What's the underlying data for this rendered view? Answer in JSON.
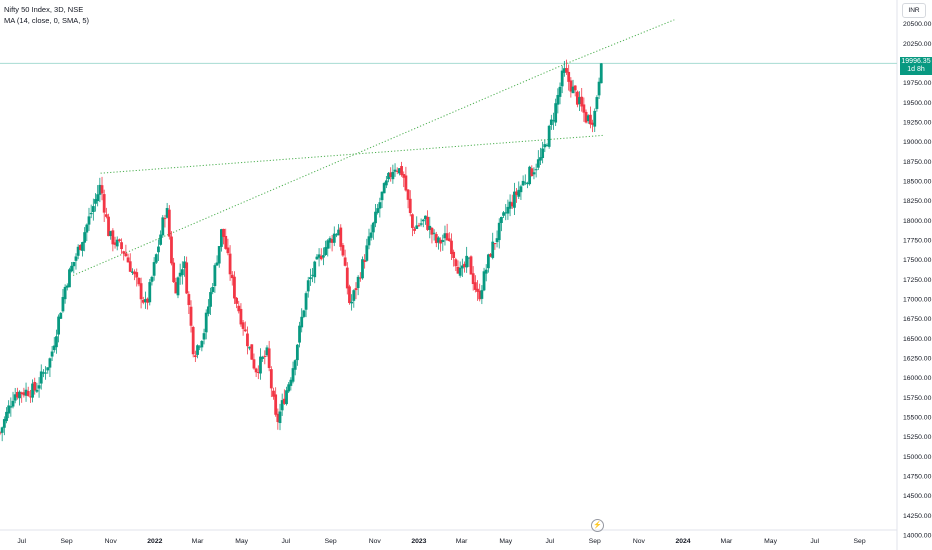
{
  "header": {
    "title": "Nifty 50 Index, 3D, NSE",
    "indicator": "MA (14, close, 0, SMA, 5)",
    "currency": "INR"
  },
  "last_price": {
    "value": "19996.35",
    "countdown": "1d 8h"
  },
  "colors": {
    "up": "#089981",
    "down": "#f23645",
    "trendline": "#4caf50",
    "price_line": "#a7dcd2"
  },
  "chart_data": {
    "type": "candlestick",
    "title": "Nifty 50 Index, 3D, NSE",
    "ylim": [
      14000,
      20700
    ],
    "y_ticks": [
      14000,
      14250,
      14500,
      14750,
      15000,
      15250,
      15500,
      15750,
      16000,
      16250,
      16500,
      16750,
      17000,
      17250,
      17500,
      17750,
      18000,
      18250,
      18500,
      18750,
      19000,
      19250,
      19500,
      19750,
      20000,
      20250,
      20500
    ],
    "y_tick_labels": [
      "14000.00",
      "14250.00",
      "14500.00",
      "14750.00",
      "15000.00",
      "15250.00",
      "15500.00",
      "15750.00",
      "16000.00",
      "16250.00",
      "16500.00",
      "16750.00",
      "17000.00",
      "17250.00",
      "17500.00",
      "17750.00",
      "18000.00",
      "18250.00",
      "18500.00",
      "18750.00",
      "19000.00",
      "19250.00",
      "19500.00",
      "19750.00",
      "20000.00",
      "20250.00",
      "20500.00"
    ],
    "x_ticks": [
      "Jul",
      "Sep",
      "Nov",
      "2022",
      "Mar",
      "May",
      "Jul",
      "Sep",
      "Nov",
      "2023",
      "Mar",
      "May",
      "Jul",
      "Sep",
      "Nov",
      "2024",
      "Mar",
      "May",
      "Jul",
      "Sep"
    ],
    "x_start": "2021-06-01",
    "x_end": "2024-10-20",
    "anchors": [
      [
        "2021-06-01",
        15300
      ],
      [
        "2021-06-20",
        15800
      ],
      [
        "2021-07-20",
        15850
      ],
      [
        "2021-08-10",
        16250
      ],
      [
        "2021-08-31",
        17200
      ],
      [
        "2021-09-20",
        17700
      ],
      [
        "2021-10-18",
        18450
      ],
      [
        "2021-10-30",
        17800
      ],
      [
        "2021-11-20",
        17600
      ],
      [
        "2021-12-20",
        16900
      ],
      [
        "2022-01-17",
        18200
      ],
      [
        "2022-01-28",
        17100
      ],
      [
        "2022-02-10",
        17500
      ],
      [
        "2022-02-24",
        16300
      ],
      [
        "2022-03-10",
        16600
      ],
      [
        "2022-04-04",
        17900
      ],
      [
        "2022-04-20",
        17100
      ],
      [
        "2022-05-20",
        16100
      ],
      [
        "2022-06-05",
        16300
      ],
      [
        "2022-06-18",
        15400
      ],
      [
        "2022-07-10",
        16100
      ],
      [
        "2022-08-01",
        17200
      ],
      [
        "2022-08-20",
        17600
      ],
      [
        "2022-09-12",
        17900
      ],
      [
        "2022-09-28",
        16900
      ],
      [
        "2022-10-20",
        17600
      ],
      [
        "2022-11-10",
        18300
      ],
      [
        "2022-11-28",
        18700
      ],
      [
        "2022-12-10",
        18600
      ],
      [
        "2022-12-23",
        17900
      ],
      [
        "2023-01-10",
        18000
      ],
      [
        "2023-01-26",
        17700
      ],
      [
        "2023-02-10",
        17800
      ],
      [
        "2023-02-28",
        17300
      ],
      [
        "2023-03-10",
        17500
      ],
      [
        "2023-03-24",
        17000
      ],
      [
        "2023-04-10",
        17600
      ],
      [
        "2023-05-01",
        18100
      ],
      [
        "2023-05-26",
        18500
      ],
      [
        "2023-06-20",
        18800
      ],
      [
        "2023-07-05",
        19300
      ],
      [
        "2023-07-20",
        19900
      ],
      [
        "2023-08-05",
        19600
      ],
      [
        "2023-08-20",
        19300
      ],
      [
        "2023-08-31",
        19300
      ],
      [
        "2023-09-08",
        19900
      ],
      [
        "2023-09-12",
        19996.35
      ]
    ],
    "trendlines": [
      {
        "from": [
          "2021-09-10",
          17300
        ],
        "to": [
          "2023-07-20",
          19980
        ]
      },
      {
        "from": [
          "2023-07-20",
          19980
        ],
        "to": [
          "2023-12-20",
          20550
        ]
      },
      {
        "from": [
          "2021-10-18",
          18600
        ],
        "to": [
          "2023-09-12",
          19080
        ]
      }
    ],
    "price_line": 19996.35,
    "grid": false,
    "legend": "top-left"
  }
}
